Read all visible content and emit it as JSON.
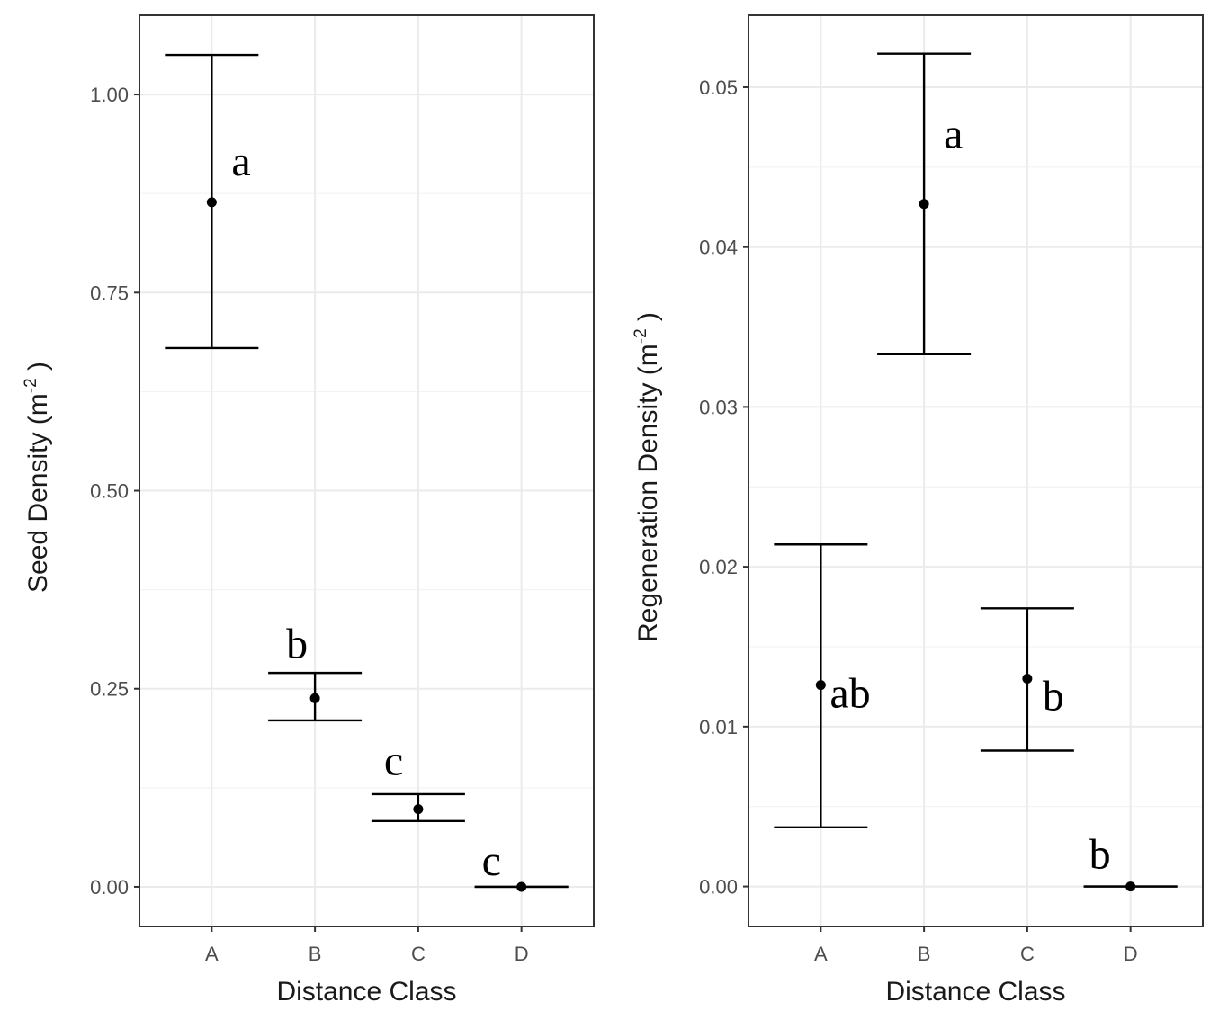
{
  "chart_data": [
    {
      "type": "scatter",
      "subtype": "point-with-error-bars",
      "xlabel": "Distance Class",
      "ylabel_main": "Seed Density (m",
      "ylabel_sup": "-2",
      "ylabel_end": " )",
      "categories": [
        "A",
        "B",
        "C",
        "D"
      ],
      "values": [
        0.864,
        0.238,
        0.098,
        0.0
      ],
      "lower": [
        0.68,
        0.21,
        0.083,
        0.0
      ],
      "upper": [
        1.05,
        0.27,
        0.117,
        0.0
      ],
      "significance_letters": [
        "a",
        "b",
        "c",
        "c"
      ],
      "ylim": [
        -0.05,
        1.1
      ],
      "yticks": [
        0.0,
        0.25,
        0.5,
        0.75,
        1.0
      ],
      "ytick_labels": [
        "0.00",
        "0.25",
        "0.50",
        "0.75",
        "1.00"
      ],
      "grid": true
    },
    {
      "type": "scatter",
      "subtype": "point-with-error-bars",
      "xlabel": "Distance Class",
      "ylabel_main": "Regeneration Density (m",
      "ylabel_sup": "-2",
      "ylabel_end": " )",
      "categories": [
        "A",
        "B",
        "C",
        "D"
      ],
      "values": [
        0.0126,
        0.0427,
        0.013,
        0.0
      ],
      "lower": [
        0.0037,
        0.0333,
        0.0085,
        0.0
      ],
      "upper": [
        0.0214,
        0.0521,
        0.0174,
        0.0
      ],
      "significance_letters": [
        "ab",
        "a",
        "b",
        "b"
      ],
      "ylim": [
        -0.0025,
        0.0545
      ],
      "yticks": [
        0.0,
        0.01,
        0.02,
        0.03,
        0.04,
        0.05
      ],
      "ytick_labels": [
        "0.00",
        "0.01",
        "0.02",
        "0.03",
        "0.04",
        "0.05"
      ],
      "grid": true
    }
  ]
}
